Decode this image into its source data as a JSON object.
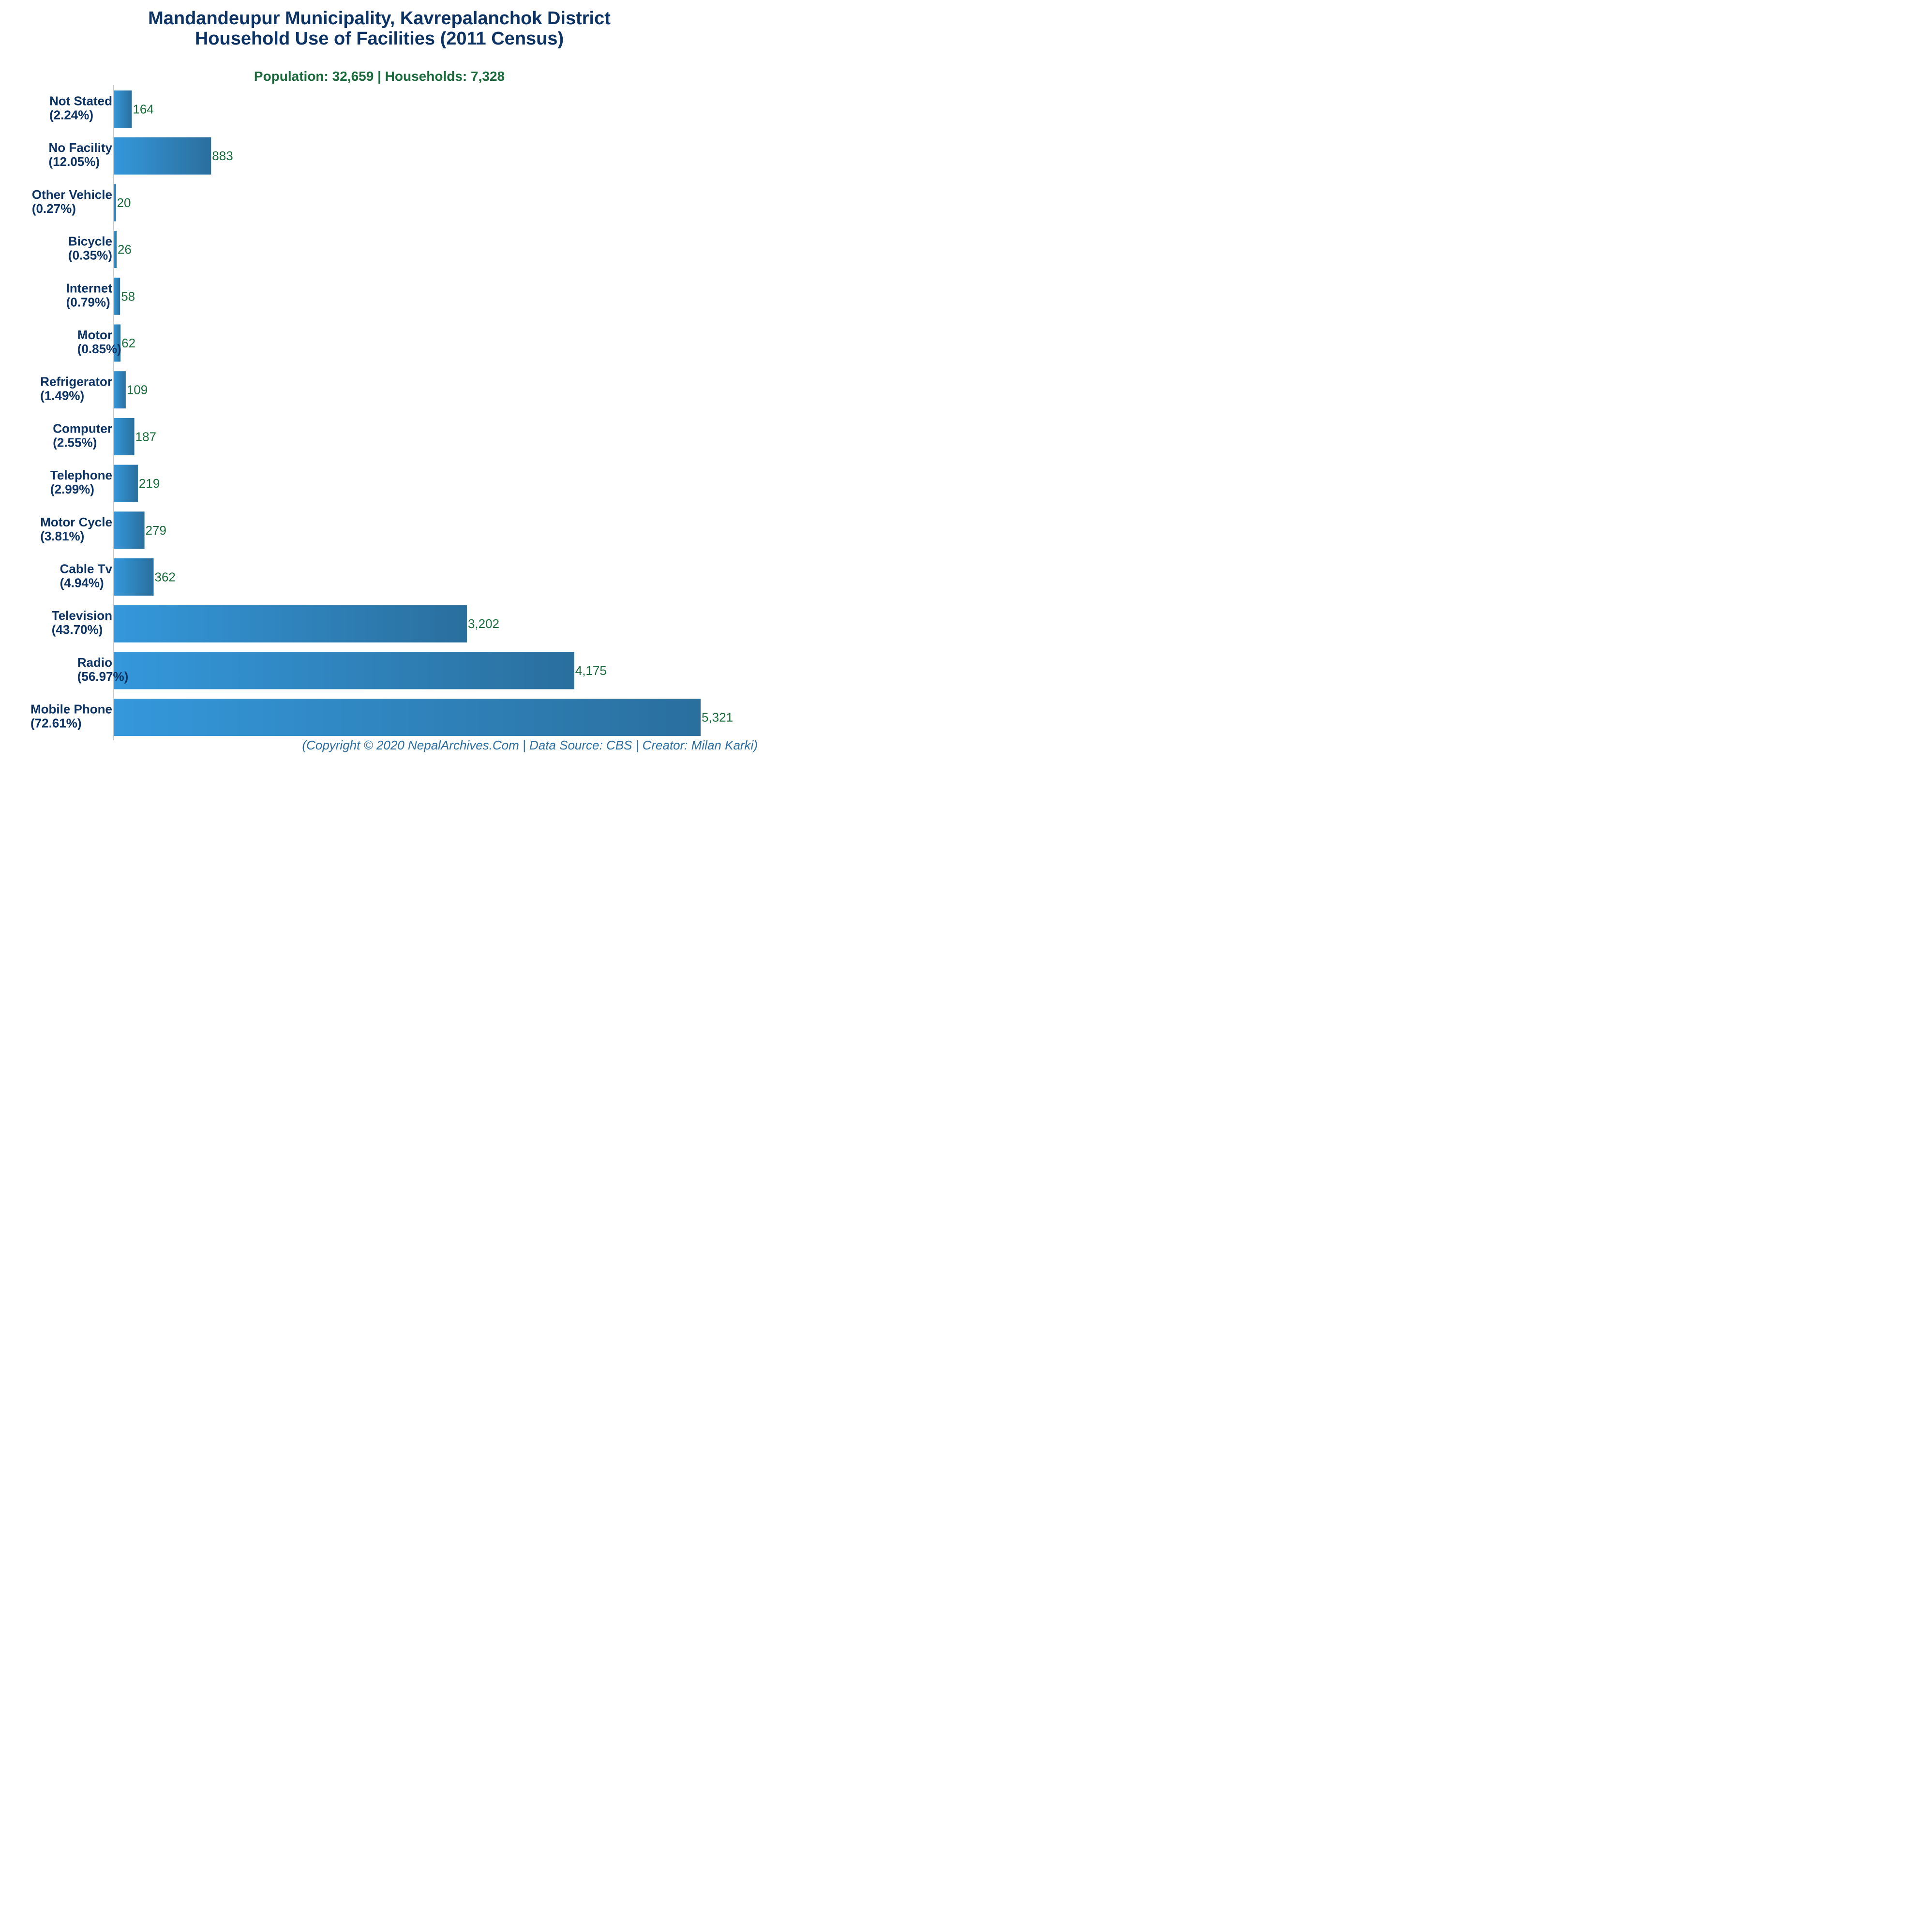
{
  "chart_data": {
    "type": "bar",
    "orientation": "horizontal",
    "title_line1": "Mandandeupur Municipality, Kavrepalanchok District",
    "title_line2": "Household Use of Facilities (2011 Census)",
    "subtitle": "Population: 32,659 | Households: 7,328",
    "credit": "(Copyright © 2020 NepalArchives.Com | Data Source: CBS | Creator: Milan Karki)",
    "categories": [
      {
        "name": "Not Stated",
        "pct": "(2.24%)"
      },
      {
        "name": "No Facility",
        "pct": "(12.05%)"
      },
      {
        "name": "Other Vehicle",
        "pct": "(0.27%)"
      },
      {
        "name": "Bicycle",
        "pct": "(0.35%)"
      },
      {
        "name": "Internet",
        "pct": "(0.79%)"
      },
      {
        "name": "Motor",
        "pct": "(0.85%)"
      },
      {
        "name": "Refrigerator",
        "pct": "(1.49%)"
      },
      {
        "name": "Computer",
        "pct": "(2.55%)"
      },
      {
        "name": "Telephone",
        "pct": "(2.99%)"
      },
      {
        "name": "Motor Cycle",
        "pct": "(3.81%)"
      },
      {
        "name": "Cable Tv",
        "pct": "(4.94%)"
      },
      {
        "name": "Television",
        "pct": "(43.70%)"
      },
      {
        "name": "Radio",
        "pct": "(56.97%)"
      },
      {
        "name": "Mobile Phone",
        "pct": "(72.61%)"
      }
    ],
    "values": [
      164,
      883,
      20,
      26,
      58,
      62,
      109,
      187,
      219,
      279,
      362,
      3202,
      4175,
      5321
    ],
    "value_labels": [
      "164",
      "883",
      "20",
      "26",
      "58",
      "62",
      "109",
      "187",
      "219",
      "279",
      "362",
      "3,202",
      "4,175",
      "5,321"
    ],
    "xlim": [
      0,
      5321
    ],
    "grid": false,
    "legend": "none",
    "colors": {
      "bar_left": "#3498db",
      "bar_right": "#2a6f9e",
      "title": "#0c3363",
      "subtitle": "#1a6b3c",
      "value_label": "#1a6b3c",
      "category_label": "#0c3363",
      "credit": "#2c6d9f",
      "axis": "#999999"
    }
  }
}
